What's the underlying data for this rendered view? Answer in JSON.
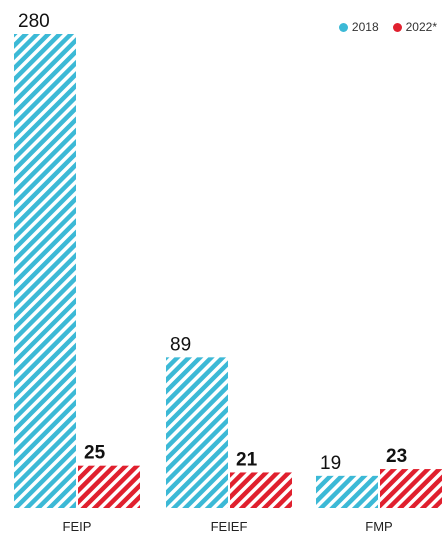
{
  "chart_data": {
    "type": "bar",
    "categories": [
      "FEIP",
      "FEIEF",
      "FMP"
    ],
    "series": [
      {
        "name": "2018",
        "values": [
          280,
          89,
          19
        ],
        "color": "#3cb9d6",
        "fill": "hatched"
      },
      {
        "name": "2022*",
        "values": [
          25,
          21,
          23
        ],
        "color": "#e0202e",
        "fill": "hatched"
      }
    ],
    "data_labels": {
      "2018": [
        "280",
        "89",
        "19"
      ],
      "2022*": [
        "25",
        "21",
        "23"
      ]
    },
    "ylim": [
      0,
      280
    ],
    "grid": false,
    "legend_position": "top-right"
  }
}
